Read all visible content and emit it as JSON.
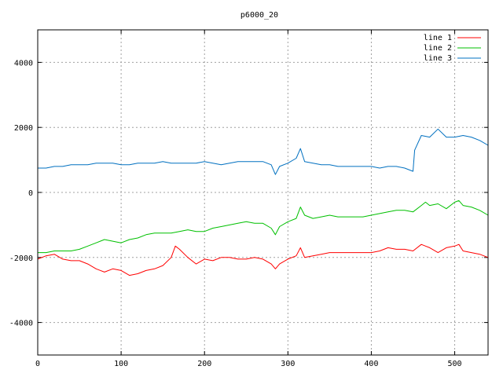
{
  "chart_data": {
    "type": "line",
    "title": "p6000_20",
    "xlabel": "",
    "ylabel": "",
    "xlim": [
      0,
      540
    ],
    "ylim": [
      -5000,
      5000
    ],
    "xticks": [
      0,
      100,
      200,
      300,
      400,
      500
    ],
    "yticks": [
      -4000,
      -2000,
      0,
      2000,
      4000
    ],
    "grid": true,
    "legend_position": "top-right",
    "series": [
      {
        "name": "line 1",
        "color": "#ff0000",
        "x": [
          0,
          10,
          20,
          30,
          40,
          50,
          60,
          70,
          80,
          90,
          100,
          110,
          120,
          130,
          140,
          150,
          160,
          165,
          170,
          180,
          190,
          200,
          210,
          220,
          230,
          240,
          250,
          260,
          270,
          280,
          285,
          290,
          300,
          310,
          315,
          320,
          330,
          340,
          350,
          360,
          370,
          380,
          390,
          400,
          410,
          420,
          430,
          440,
          450,
          460,
          465,
          470,
          480,
          490,
          500,
          505,
          510,
          520,
          530,
          540
        ],
        "y": [
          -2050,
          -1950,
          -1900,
          -2050,
          -2100,
          -2100,
          -2200,
          -2350,
          -2450,
          -2350,
          -2400,
          -2550,
          -2500,
          -2400,
          -2350,
          -2250,
          -2000,
          -1650,
          -1750,
          -2000,
          -2200,
          -2050,
          -2100,
          -2000,
          -2000,
          -2050,
          -2050,
          -2000,
          -2050,
          -2200,
          -2350,
          -2200,
          -2050,
          -1950,
          -1700,
          -2000,
          -1950,
          -1900,
          -1850,
          -1850,
          -1850,
          -1850,
          -1850,
          -1850,
          -1800,
          -1700,
          -1750,
          -1750,
          -1800,
          -1600,
          -1650,
          -1700,
          -1850,
          -1700,
          -1650,
          -1600,
          -1800,
          -1850,
          -1900,
          -2000
        ]
      },
      {
        "name": "line 2",
        "color": "#00c000",
        "x": [
          0,
          10,
          20,
          30,
          40,
          50,
          60,
          70,
          80,
          90,
          100,
          110,
          120,
          130,
          140,
          150,
          160,
          170,
          180,
          190,
          200,
          210,
          220,
          230,
          240,
          250,
          260,
          270,
          280,
          285,
          290,
          300,
          310,
          315,
          320,
          330,
          340,
          350,
          360,
          370,
          380,
          390,
          400,
          410,
          420,
          430,
          440,
          450,
          460,
          465,
          470,
          480,
          490,
          500,
          505,
          510,
          520,
          530,
          540
        ],
        "y": [
          -1850,
          -1850,
          -1800,
          -1800,
          -1800,
          -1750,
          -1650,
          -1550,
          -1450,
          -1500,
          -1550,
          -1450,
          -1400,
          -1300,
          -1250,
          -1250,
          -1250,
          -1200,
          -1150,
          -1200,
          -1200,
          -1100,
          -1050,
          -1000,
          -950,
          -900,
          -950,
          -950,
          -1100,
          -1300,
          -1050,
          -900,
          -800,
          -450,
          -700,
          -800,
          -750,
          -700,
          -750,
          -750,
          -750,
          -750,
          -700,
          -650,
          -600,
          -550,
          -550,
          -600,
          -400,
          -300,
          -400,
          -350,
          -500,
          -300,
          -250,
          -400,
          -450,
          -550,
          -700
        ]
      },
      {
        "name": "line 3",
        "color": "#0070c0",
        "x": [
          0,
          10,
          20,
          30,
          40,
          50,
          60,
          70,
          80,
          90,
          100,
          110,
          120,
          130,
          140,
          150,
          160,
          170,
          180,
          190,
          200,
          210,
          220,
          230,
          240,
          250,
          260,
          270,
          280,
          285,
          290,
          300,
          310,
          315,
          320,
          330,
          340,
          350,
          360,
          370,
          380,
          390,
          400,
          410,
          420,
          430,
          440,
          450,
          452,
          460,
          470,
          480,
          490,
          500,
          510,
          520,
          530,
          540
        ],
        "y": [
          750,
          750,
          800,
          800,
          850,
          850,
          850,
          900,
          900,
          900,
          850,
          850,
          900,
          900,
          900,
          950,
          900,
          900,
          900,
          900,
          950,
          900,
          850,
          900,
          950,
          950,
          950,
          950,
          850,
          550,
          800,
          900,
          1050,
          1350,
          950,
          900,
          850,
          850,
          800,
          800,
          800,
          800,
          800,
          750,
          800,
          800,
          750,
          650,
          1300,
          1750,
          1700,
          1950,
          1700,
          1700,
          1750,
          1700,
          1600,
          1450
        ]
      }
    ]
  }
}
